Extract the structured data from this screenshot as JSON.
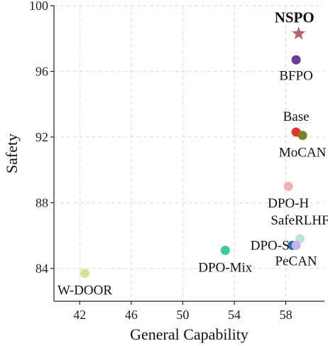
{
  "chart_data": {
    "type": "scatter",
    "xlabel": "General Capability",
    "ylabel": "Safety",
    "xlim": [
      40,
      61
    ],
    "ylim": [
      82,
      100
    ],
    "xticks": [
      42,
      46,
      50,
      54,
      58
    ],
    "yticks": [
      84,
      88,
      92,
      96,
      100
    ],
    "grid": true,
    "points": [
      {
        "name": "NSPO",
        "x": 59.0,
        "y": 98.3,
        "color": "#b5666a",
        "marker": "star",
        "bold": true
      },
      {
        "name": "BFPO",
        "x": 58.8,
        "y": 96.7,
        "color": "#6a3d9a",
        "marker": "circle"
      },
      {
        "name": "Base",
        "x": 58.8,
        "y": 92.3,
        "color": "#e8302c",
        "marker": "circle"
      },
      {
        "name": "MoCAN",
        "x": 59.3,
        "y": 92.1,
        "color": "#7f7f1f",
        "marker": "circle"
      },
      {
        "name": "DPO-H",
        "x": 58.2,
        "y": 89.0,
        "color": "#f4b1b4",
        "marker": "circle"
      },
      {
        "name": "SafeRLHF",
        "x": 59.1,
        "y": 85.8,
        "color": "#b8e4dc",
        "marker": "circle"
      },
      {
        "name": "DPO-S",
        "x": 58.5,
        "y": 85.4,
        "color": "#2f6fa5",
        "marker": "circle"
      },
      {
        "name": "PeCAN",
        "x": 58.8,
        "y": 85.4,
        "color": "#c8b0e8",
        "marker": "circle"
      },
      {
        "name": "DPO-Mix",
        "x": 53.3,
        "y": 85.1,
        "color": "#3fc9a0",
        "marker": "circle"
      },
      {
        "name": "W-DOOR",
        "x": 42.4,
        "y": 83.7,
        "color": "#dde08a",
        "marker": "circle"
      }
    ]
  }
}
